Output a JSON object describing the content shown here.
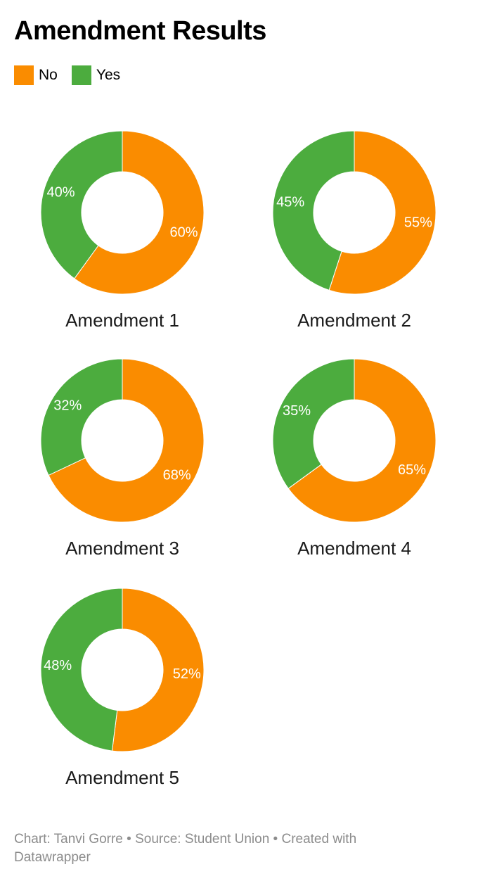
{
  "title": "Amendment Results",
  "legend": [
    {
      "label": "No",
      "color": "#fa8c00"
    },
    {
      "label": "Yes",
      "color": "#4cac3e"
    }
  ],
  "footer": {
    "text": "Chart: Tanvi Gorre • Source: Student Union • Created with Datawrapper"
  },
  "chart_data": {
    "type": "pie",
    "variant": "donut",
    "title": "Amendment Results",
    "series_names": [
      "No",
      "Yes"
    ],
    "colors": {
      "No": "#fa8c00",
      "Yes": "#4cac3e"
    },
    "charts": [
      {
        "label": "Amendment 1",
        "slices": [
          {
            "name": "No",
            "value": 60,
            "text": "60%"
          },
          {
            "name": "Yes",
            "value": 40,
            "text": "40%"
          }
        ]
      },
      {
        "label": "Amendment 2",
        "slices": [
          {
            "name": "No",
            "value": 55,
            "text": "55%"
          },
          {
            "name": "Yes",
            "value": 45,
            "text": "45%"
          }
        ]
      },
      {
        "label": "Amendment 3",
        "slices": [
          {
            "name": "No",
            "value": 68,
            "text": "68%"
          },
          {
            "name": "Yes",
            "value": 32,
            "text": "32%"
          }
        ]
      },
      {
        "label": "Amendment 4",
        "slices": [
          {
            "name": "No",
            "value": 65,
            "text": "65%"
          },
          {
            "name": "Yes",
            "value": 35,
            "text": "35%"
          }
        ]
      },
      {
        "label": "Amendment 5",
        "slices": [
          {
            "name": "No",
            "value": 52,
            "text": "52%"
          },
          {
            "name": "Yes",
            "value": 48,
            "text": "48%"
          }
        ]
      }
    ]
  }
}
